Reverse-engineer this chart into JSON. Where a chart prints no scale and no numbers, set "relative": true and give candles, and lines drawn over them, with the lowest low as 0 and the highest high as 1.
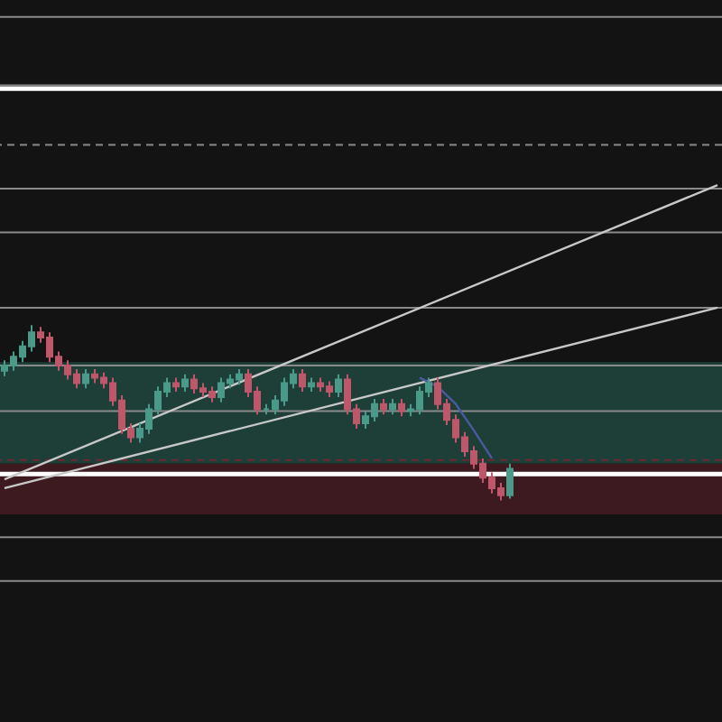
{
  "chart_data": {
    "type": "candlestick",
    "relative": true,
    "categories": [
      null,
      null,
      null,
      null,
      null,
      null,
      null,
      null,
      null,
      null,
      null,
      null,
      null,
      null,
      null,
      null,
      null,
      null,
      null,
      null,
      null,
      null,
      null,
      null,
      null,
      null,
      null,
      null,
      null,
      null,
      null,
      null,
      null,
      null,
      null,
      null,
      null,
      null,
      null,
      null,
      null,
      null,
      null,
      null,
      null,
      null,
      null,
      null,
      null,
      null,
      null,
      null,
      null,
      null,
      null,
      null,
      null,
      null,
      null,
      null,
      null,
      null,
      null,
      null,
      null,
      null,
      null,
      null,
      null,
      null,
      null,
      null,
      null,
      null,
      null,
      null,
      null,
      null,
      null,
      null
    ],
    "ohlc": [
      [
        0.74,
        0.8,
        0.71,
        0.77
      ],
      [
        0.77,
        0.85,
        0.74,
        0.82
      ],
      [
        0.82,
        0.91,
        0.79,
        0.88
      ],
      [
        0.88,
        1,
        0.85,
        0.96
      ],
      [
        0.96,
        0.99,
        0.9,
        0.93
      ],
      [
        0.93,
        0.96,
        0.79,
        0.82
      ],
      [
        0.82,
        0.85,
        0.74,
        0.77
      ],
      [
        0.77,
        0.8,
        0.69,
        0.72
      ],
      [
        0.72,
        0.75,
        0.64,
        0.67
      ],
      [
        0.67,
        0.75,
        0.64,
        0.72
      ],
      [
        0.72,
        0.75,
        0.67,
        0.7
      ],
      [
        0.7,
        0.73,
        0.64,
        0.67
      ],
      [
        0.67,
        0.7,
        0.54,
        0.57
      ],
      [
        0.57,
        0.6,
        0.38,
        0.41
      ],
      [
        0.41,
        0.44,
        0.33,
        0.36
      ],
      [
        0.36,
        0.44,
        0.33,
        0.41
      ],
      [
        0.41,
        0.55,
        0.38,
        0.52
      ],
      [
        0.52,
        0.65,
        0.49,
        0.62
      ],
      [
        0.62,
        0.7,
        0.59,
        0.67
      ],
      [
        0.67,
        0.7,
        0.62,
        0.65
      ],
      [
        0.65,
        0.72,
        0.62,
        0.69
      ],
      [
        0.69,
        0.72,
        0.61,
        0.64
      ],
      [
        0.64,
        0.67,
        0.59,
        0.62
      ],
      [
        0.62,
        0.65,
        0.56,
        0.59
      ],
      [
        0.59,
        0.7,
        0.56,
        0.67
      ],
      [
        0.67,
        0.72,
        0.64,
        0.69
      ],
      [
        0.69,
        0.75,
        0.66,
        0.72
      ],
      [
        0.72,
        0.75,
        0.59,
        0.62
      ],
      [
        0.62,
        0.65,
        0.49,
        0.52
      ],
      [
        0.52,
        0.55,
        0.49,
        0.52
      ],
      [
        0.52,
        0.6,
        0.49,
        0.57
      ],
      [
        0.57,
        0.7,
        0.54,
        0.67
      ],
      [
        0.67,
        0.75,
        0.64,
        0.72
      ],
      [
        0.72,
        0.75,
        0.62,
        0.65
      ],
      [
        0.65,
        0.7,
        0.62,
        0.67
      ],
      [
        0.67,
        0.7,
        0.62,
        0.65
      ],
      [
        0.65,
        0.68,
        0.59,
        0.62
      ],
      [
        0.62,
        0.72,
        0.59,
        0.69
      ],
      [
        0.69,
        0.72,
        0.49,
        0.52
      ],
      [
        0.52,
        0.55,
        0.41,
        0.44
      ],
      [
        0.44,
        0.51,
        0.41,
        0.48
      ],
      [
        0.48,
        0.58,
        0.45,
        0.55
      ],
      [
        0.55,
        0.58,
        0.49,
        0.52
      ],
      [
        0.52,
        0.58,
        0.49,
        0.55
      ],
      [
        0.55,
        0.58,
        0.48,
        0.51
      ],
      [
        0.51,
        0.55,
        0.48,
        0.52
      ],
      [
        0.52,
        0.65,
        0.49,
        0.62
      ],
      [
        0.62,
        0.7,
        0.59,
        0.67
      ],
      [
        0.67,
        0.7,
        0.52,
        0.55
      ],
      [
        0.55,
        0.58,
        0.43,
        0.46
      ],
      [
        0.46,
        0.49,
        0.33,
        0.36
      ],
      [
        0.36,
        0.39,
        0.25,
        0.28
      ],
      [
        0.28,
        0.31,
        0.18,
        0.21
      ],
      [
        0.21,
        0.24,
        0.1,
        0.13
      ],
      [
        0.13,
        0.16,
        0.04,
        0.07
      ],
      [
        0.07,
        0.1,
        0,
        0.03
      ],
      [
        0.03,
        0.21,
        0.01,
        0.18
      ],
      null,
      null,
      null,
      null,
      null,
      null,
      null,
      null,
      null,
      null,
      null,
      null,
      null,
      null,
      null,
      null,
      null,
      null,
      null,
      null,
      null,
      null,
      null
    ],
    "colors": [
      "#4a9a8a",
      "#4a9a8a",
      "#4a9a8a",
      "#4a9a8a",
      "#c0566a",
      "#c0566a",
      "#c0566a",
      "#c0566a",
      "#c0566a",
      "#4a9a8a",
      "#c0566a",
      "#c0566a",
      "#c0566a",
      "#c0566a",
      "#c0566a",
      "#4a9a8a",
      "#4a9a8a",
      "#4a9a8a",
      "#4a9a8a",
      "#c0566a",
      "#4a9a8a",
      "#c0566a",
      "#c0566a",
      "#c0566a",
      "#4a9a8a",
      "#4a9a8a",
      "#4a9a8a",
      "#c0566a",
      "#c0566a",
      "#4a9a8a",
      "#4a9a8a",
      "#4a9a8a",
      "#4a9a8a",
      "#c0566a",
      "#4a9a8a",
      "#c0566a",
      "#c0566a",
      "#4a9a8a",
      "#c0566a",
      "#c0566a",
      "#4a9a8a",
      "#4a9a8a",
      "#c0566a",
      "#4a9a8a",
      "#c0566a",
      "#4a9a8a",
      "#4a9a8a",
      "#4a9a8a",
      "#c0566a",
      "#c0566a",
      "#c0566a",
      "#c0566a",
      "#c0566a",
      "#c0566a",
      "#c0566a",
      "#c0566a",
      "#4a9a8a",
      null,
      null,
      null,
      null,
      null,
      null,
      null,
      null,
      null,
      null,
      null,
      null,
      null,
      null,
      null,
      null,
      null,
      null,
      null,
      null,
      null,
      null,
      null
    ],
    "series": [
      {
        "type": "line",
        "color": "#c8c8c8",
        "values": [
          0.12,
          null,
          null,
          null,
          null,
          null,
          null,
          null,
          null,
          null,
          null,
          null,
          null,
          null,
          null,
          null,
          null,
          null,
          null,
          null,
          null,
          null,
          null,
          null,
          null,
          null,
          null,
          null,
          null,
          null,
          null,
          null,
          null,
          null,
          null,
          null,
          null,
          null,
          null,
          null,
          null,
          null,
          null,
          null,
          null,
          null,
          null,
          null,
          null,
          null,
          null,
          null,
          null,
          null,
          null,
          null,
          null,
          null,
          null,
          null,
          null,
          null,
          null,
          null,
          null,
          null,
          null,
          null,
          null,
          null,
          null,
          null,
          null,
          null,
          null,
          null,
          null,
          null,
          null,
          1.8
        ]
      },
      {
        "type": "line",
        "color": "#c8c8c8",
        "values": [
          0.07,
          null,
          null,
          null,
          null,
          null,
          null,
          null,
          null,
          null,
          null,
          null,
          null,
          null,
          null,
          null,
          null,
          null,
          null,
          null,
          null,
          null,
          null,
          null,
          null,
          null,
          null,
          null,
          null,
          null,
          null,
          null,
          null,
          null,
          null,
          null,
          null,
          null,
          null,
          null,
          null,
          null,
          null,
          null,
          null,
          null,
          null,
          null,
          null,
          null,
          null,
          null,
          null,
          null,
          null,
          null,
          null,
          null,
          null,
          null,
          null,
          null,
          null,
          null,
          null,
          null,
          null,
          null,
          null,
          null,
          null,
          null,
          null,
          null,
          null,
          null,
          null,
          null,
          null,
          1.1
        ]
      },
      {
        "type": "line",
        "color": "#4a5aa0",
        "values": [
          null,
          null,
          null,
          null,
          null,
          null,
          null,
          null,
          null,
          null,
          null,
          null,
          null,
          null,
          null,
          null,
          null,
          null,
          null,
          null,
          null,
          null,
          null,
          null,
          null,
          null,
          null,
          null,
          null,
          null,
          null,
          null,
          null,
          null,
          null,
          null,
          null,
          null,
          null,
          null,
          null,
          null,
          null,
          null,
          null,
          null,
          0.7,
          null,
          0.65,
          null,
          0.55,
          null,
          0.4,
          null,
          0.24,
          null,
          null,
          null,
          null,
          null,
          null,
          null,
          null,
          null,
          null,
          null,
          null,
          null,
          null,
          null,
          null,
          null,
          null,
          null,
          null,
          null,
          null,
          null,
          null,
          null
        ]
      }
    ],
    "bands": [
      {
        "axis": "y",
        "from": 0.21,
        "to": 0.79,
        "color": "#1d3f38"
      },
      {
        "axis": "y",
        "from": -0.08,
        "to": 0.21,
        "color": "#3d1a20"
      }
    ],
    "ref_lines": [
      {
        "axis": "y",
        "value": 2.76,
        "color": "#8a8a8a",
        "line_style": "solid"
      },
      {
        "axis": "y",
        "value": 2.37,
        "color": "#8a8a8a",
        "line_style": "solid"
      },
      {
        "axis": "y",
        "value": 2.35,
        "color": "#ffffff",
        "line_style": "solid"
      },
      {
        "axis": "y",
        "value": 2.03,
        "color": "#8a8a8a",
        "line_style": "dashed"
      },
      {
        "axis": "y",
        "value": 1.78,
        "color": "#8a8a8a",
        "line_style": "solid"
      },
      {
        "axis": "y",
        "value": 1.53,
        "color": "#8a8a8a",
        "line_style": "solid"
      },
      {
        "axis": "y",
        "value": 1.1,
        "color": "#8a8a8a",
        "line_style": "solid"
      },
      {
        "axis": "y",
        "value": 0.77,
        "color": "#8a8a8a",
        "line_style": "solid"
      },
      {
        "axis": "y",
        "value": 0.51,
        "color": "#8a8a8a",
        "line_style": "solid"
      },
      {
        "axis": "y",
        "value": 0.23,
        "color": "#6a2a30",
        "line_style": "dashed"
      },
      {
        "axis": "y",
        "value": 0.15,
        "color": "#ffffff",
        "line_style": "solid"
      },
      {
        "axis": "y",
        "value": -0.21,
        "color": "#8a8a8a",
        "line_style": "solid"
      },
      {
        "axis": "y",
        "value": -0.46,
        "color": "#8a8a8a",
        "line_style": "solid"
      }
    ]
  }
}
